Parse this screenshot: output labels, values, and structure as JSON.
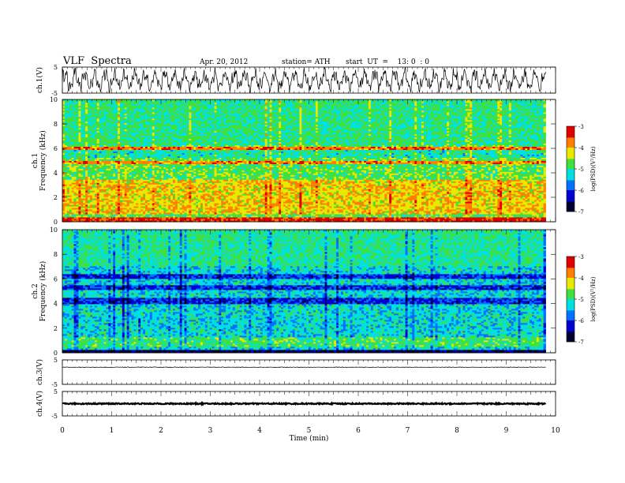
{
  "header": {
    "title": "VLF  Spectra",
    "date": "Apr. 20, 2012",
    "station": "station= ATH",
    "start": "start  UT  =    13: 0  : 0"
  },
  "chart_data": [
    {
      "type": "line",
      "panel": "ch1-waveform",
      "ylabel": "ch.1(V)",
      "ylim": [
        -5,
        5
      ],
      "y_ticks": [
        "5",
        "-5"
      ],
      "x_range_min": [
        0,
        9.8
      ],
      "description_values": "oscillating waveform roughly between -4 and 4 V"
    },
    {
      "type": "heatmap",
      "panel": "ch1-spectrogram",
      "ylabel": [
        "ch.1",
        "Frequency  (kHz)"
      ],
      "ylim": [
        0,
        10
      ],
      "y_ticks": [
        "0",
        "2",
        "4",
        "6",
        "8",
        "10"
      ],
      "x_range_min": [
        0,
        9.8
      ],
      "colorbar": {
        "label": "log(PSD)(V²/Hz)",
        "ticks": [
          "-3",
          "-4",
          "-5",
          "-6",
          "-7"
        ],
        "range": [
          -7,
          -3
        ]
      },
      "dominant_levels": "mostly -4 to -5 (red/yellow/green), strong bands near 6.0 and 4.9 kHz"
    },
    {
      "type": "heatmap",
      "panel": "ch2-spectrogram",
      "ylabel": [
        "ch.2",
        "Frequency  (kHz)"
      ],
      "ylim": [
        0,
        10
      ],
      "y_ticks": [
        "0",
        "2",
        "4",
        "6",
        "8",
        "10"
      ],
      "x_range_min": [
        0,
        9.8
      ],
      "colorbar": {
        "label": "log(PSD)(V²/Hz)",
        "ticks": [
          "-3",
          "-4",
          "-5",
          "-6",
          "-7"
        ],
        "range": [
          -7,
          -3
        ]
      },
      "dominant_levels": "mostly -5 to -6 (green/cyan/blue), dark blue bands near 6.2, 5.3, 4.2 kHz"
    },
    {
      "type": "line",
      "panel": "ch3-waveform",
      "ylabel": "ch.3(V)",
      "ylim": [
        -5,
        5
      ],
      "y_ticks": [
        "5",
        "-5"
      ],
      "x_range_min": [
        0,
        9.8
      ],
      "description_values": "near-constant line at about 2 V"
    },
    {
      "type": "line",
      "panel": "ch4-waveform",
      "ylabel": "ch.4(V)",
      "ylim": [
        -5,
        5
      ],
      "y_ticks": [
        "5",
        "-5"
      ],
      "x_range_min": [
        0,
        9.8
      ],
      "description_values": "near-constant thick line at about 0 V"
    }
  ],
  "x_axis": {
    "label": "Time  (min)",
    "ticks": [
      "0",
      "1",
      "2",
      "3",
      "4",
      "5",
      "6",
      "7",
      "8",
      "9",
      "10"
    ],
    "xlim": [
      0,
      10
    ]
  },
  "colors": {
    "colormap": [
      "#000030",
      "#0000d0",
      "#0070ff",
      "#00e0e0",
      "#40e040",
      "#e8e800",
      "#ff8000",
      "#e00000",
      "#ffffff"
    ]
  }
}
